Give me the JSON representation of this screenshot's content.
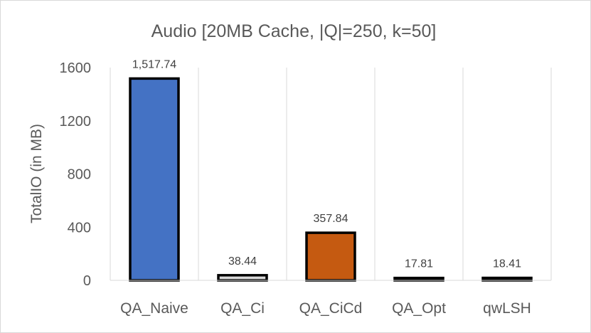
{
  "chart_data": {
    "type": "bar",
    "title": "Audio [20MB Cache, |Q|=250, k=50]",
    "xlabel": "",
    "ylabel": "TotalIO (in MB)",
    "ylim": [
      0,
      1600
    ],
    "yticks": [
      0,
      400,
      800,
      1200,
      1600
    ],
    "ytick_labels": [
      "0",
      "400",
      "800",
      "1200",
      "1600"
    ],
    "grid": "vertical",
    "categories": [
      "QA_Naive",
      "QA_Ci",
      "QA_CiCd",
      "QA_Opt",
      "qwLSH"
    ],
    "values": [
      1517.74,
      38.44,
      357.84,
      17.81,
      18.41
    ],
    "data_labels": [
      "1,517.74",
      "38.44",
      "357.84",
      "17.81",
      "18.41"
    ],
    "colors": [
      "#4472c4",
      "#d9d9d9",
      "#c55a11",
      "#d9d9d9",
      "#d9d9d9"
    ],
    "edge_color": "#000000"
  }
}
